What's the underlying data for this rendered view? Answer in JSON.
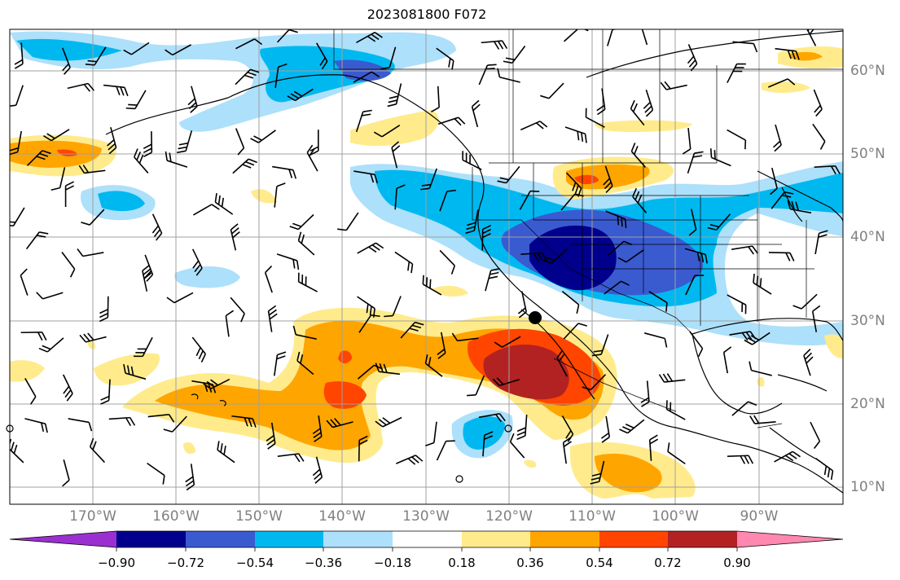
{
  "title": "2023081800 F072",
  "map": {
    "type": "filled-contour map with wind barbs",
    "projection": "PlateCarree",
    "lon_range": [
      -180,
      -80
    ],
    "lat_range": [
      8,
      65
    ],
    "grid": true,
    "marker": "black dot near 30.5N 117W",
    "lon_labels": [
      "170°W",
      "160°W",
      "150°W",
      "140°W",
      "130°W",
      "120°W",
      "110°W",
      "100°W",
      "90°W"
    ],
    "lat_labels": [
      "60°N",
      "50°N",
      "40°N",
      "30°N",
      "20°N",
      "10°N"
    ]
  },
  "colorbar": {
    "ticks": [
      "−0.90",
      "−0.72",
      "−0.54",
      "−0.36",
      "−0.18",
      "0.18",
      "0.36",
      "0.54",
      "0.72",
      "0.90"
    ],
    "extend": "both",
    "colors": {
      "under": "#9b30d0",
      "b1": "#00008c",
      "b2": "#3a5ad0",
      "b3": "#00b8f0",
      "b4": "#ade0fa",
      "b5": "#ffffff",
      "b6": "#ffeb8c",
      "b7": "#ffa500",
      "b8": "#ff4500",
      "b9": "#b22222",
      "over": "#ff88b0"
    }
  }
}
